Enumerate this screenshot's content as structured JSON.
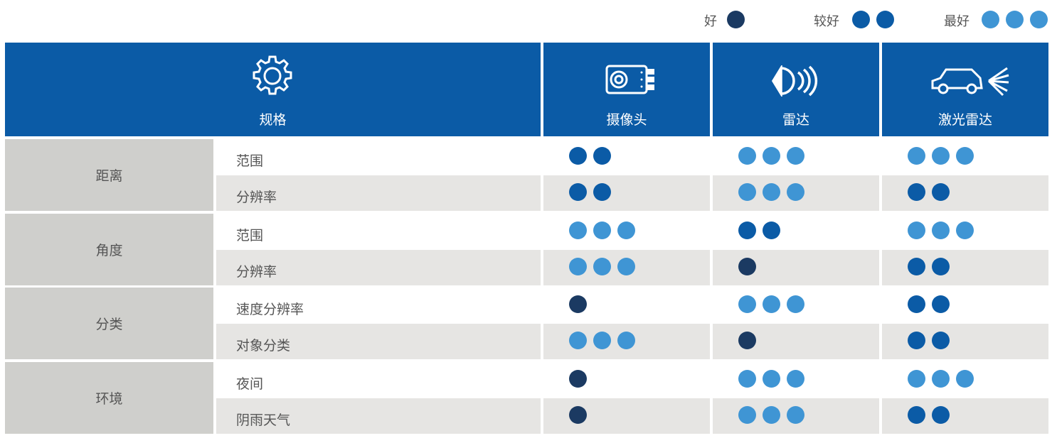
{
  "legend": [
    {
      "label": "好",
      "dots": 1,
      "color": "#1b3a62"
    },
    {
      "label": "较好",
      "dots": 2,
      "color": "#0b5ba6"
    },
    {
      "label": "最好",
      "dots": 3,
      "color": "#3f95d4"
    }
  ],
  "table": {
    "header": {
      "spec": "规格",
      "columns": [
        "摄像头",
        "雷达",
        "激光雷达"
      ]
    },
    "groups": [
      {
        "name": "距离",
        "items": [
          {
            "label": "范围",
            "ratings": [
              2,
              3,
              3
            ]
          },
          {
            "label": "分辨率",
            "ratings": [
              2,
              3,
              2
            ]
          }
        ]
      },
      {
        "name": "角度",
        "items": [
          {
            "label": "范围",
            "ratings": [
              3,
              2,
              3
            ]
          },
          {
            "label": "分辨率",
            "ratings": [
              3,
              1,
              2
            ]
          }
        ]
      },
      {
        "name": "分类",
        "items": [
          {
            "label": "速度分辨率",
            "ratings": [
              1,
              3,
              2
            ]
          },
          {
            "label": "对象分类",
            "ratings": [
              3,
              1,
              2
            ]
          }
        ]
      },
      {
        "name": "环境",
        "items": [
          {
            "label": "夜间",
            "ratings": [
              1,
              3,
              3
            ]
          },
          {
            "label": "阴雨天气",
            "ratings": [
              1,
              3,
              2
            ]
          }
        ]
      }
    ]
  }
}
